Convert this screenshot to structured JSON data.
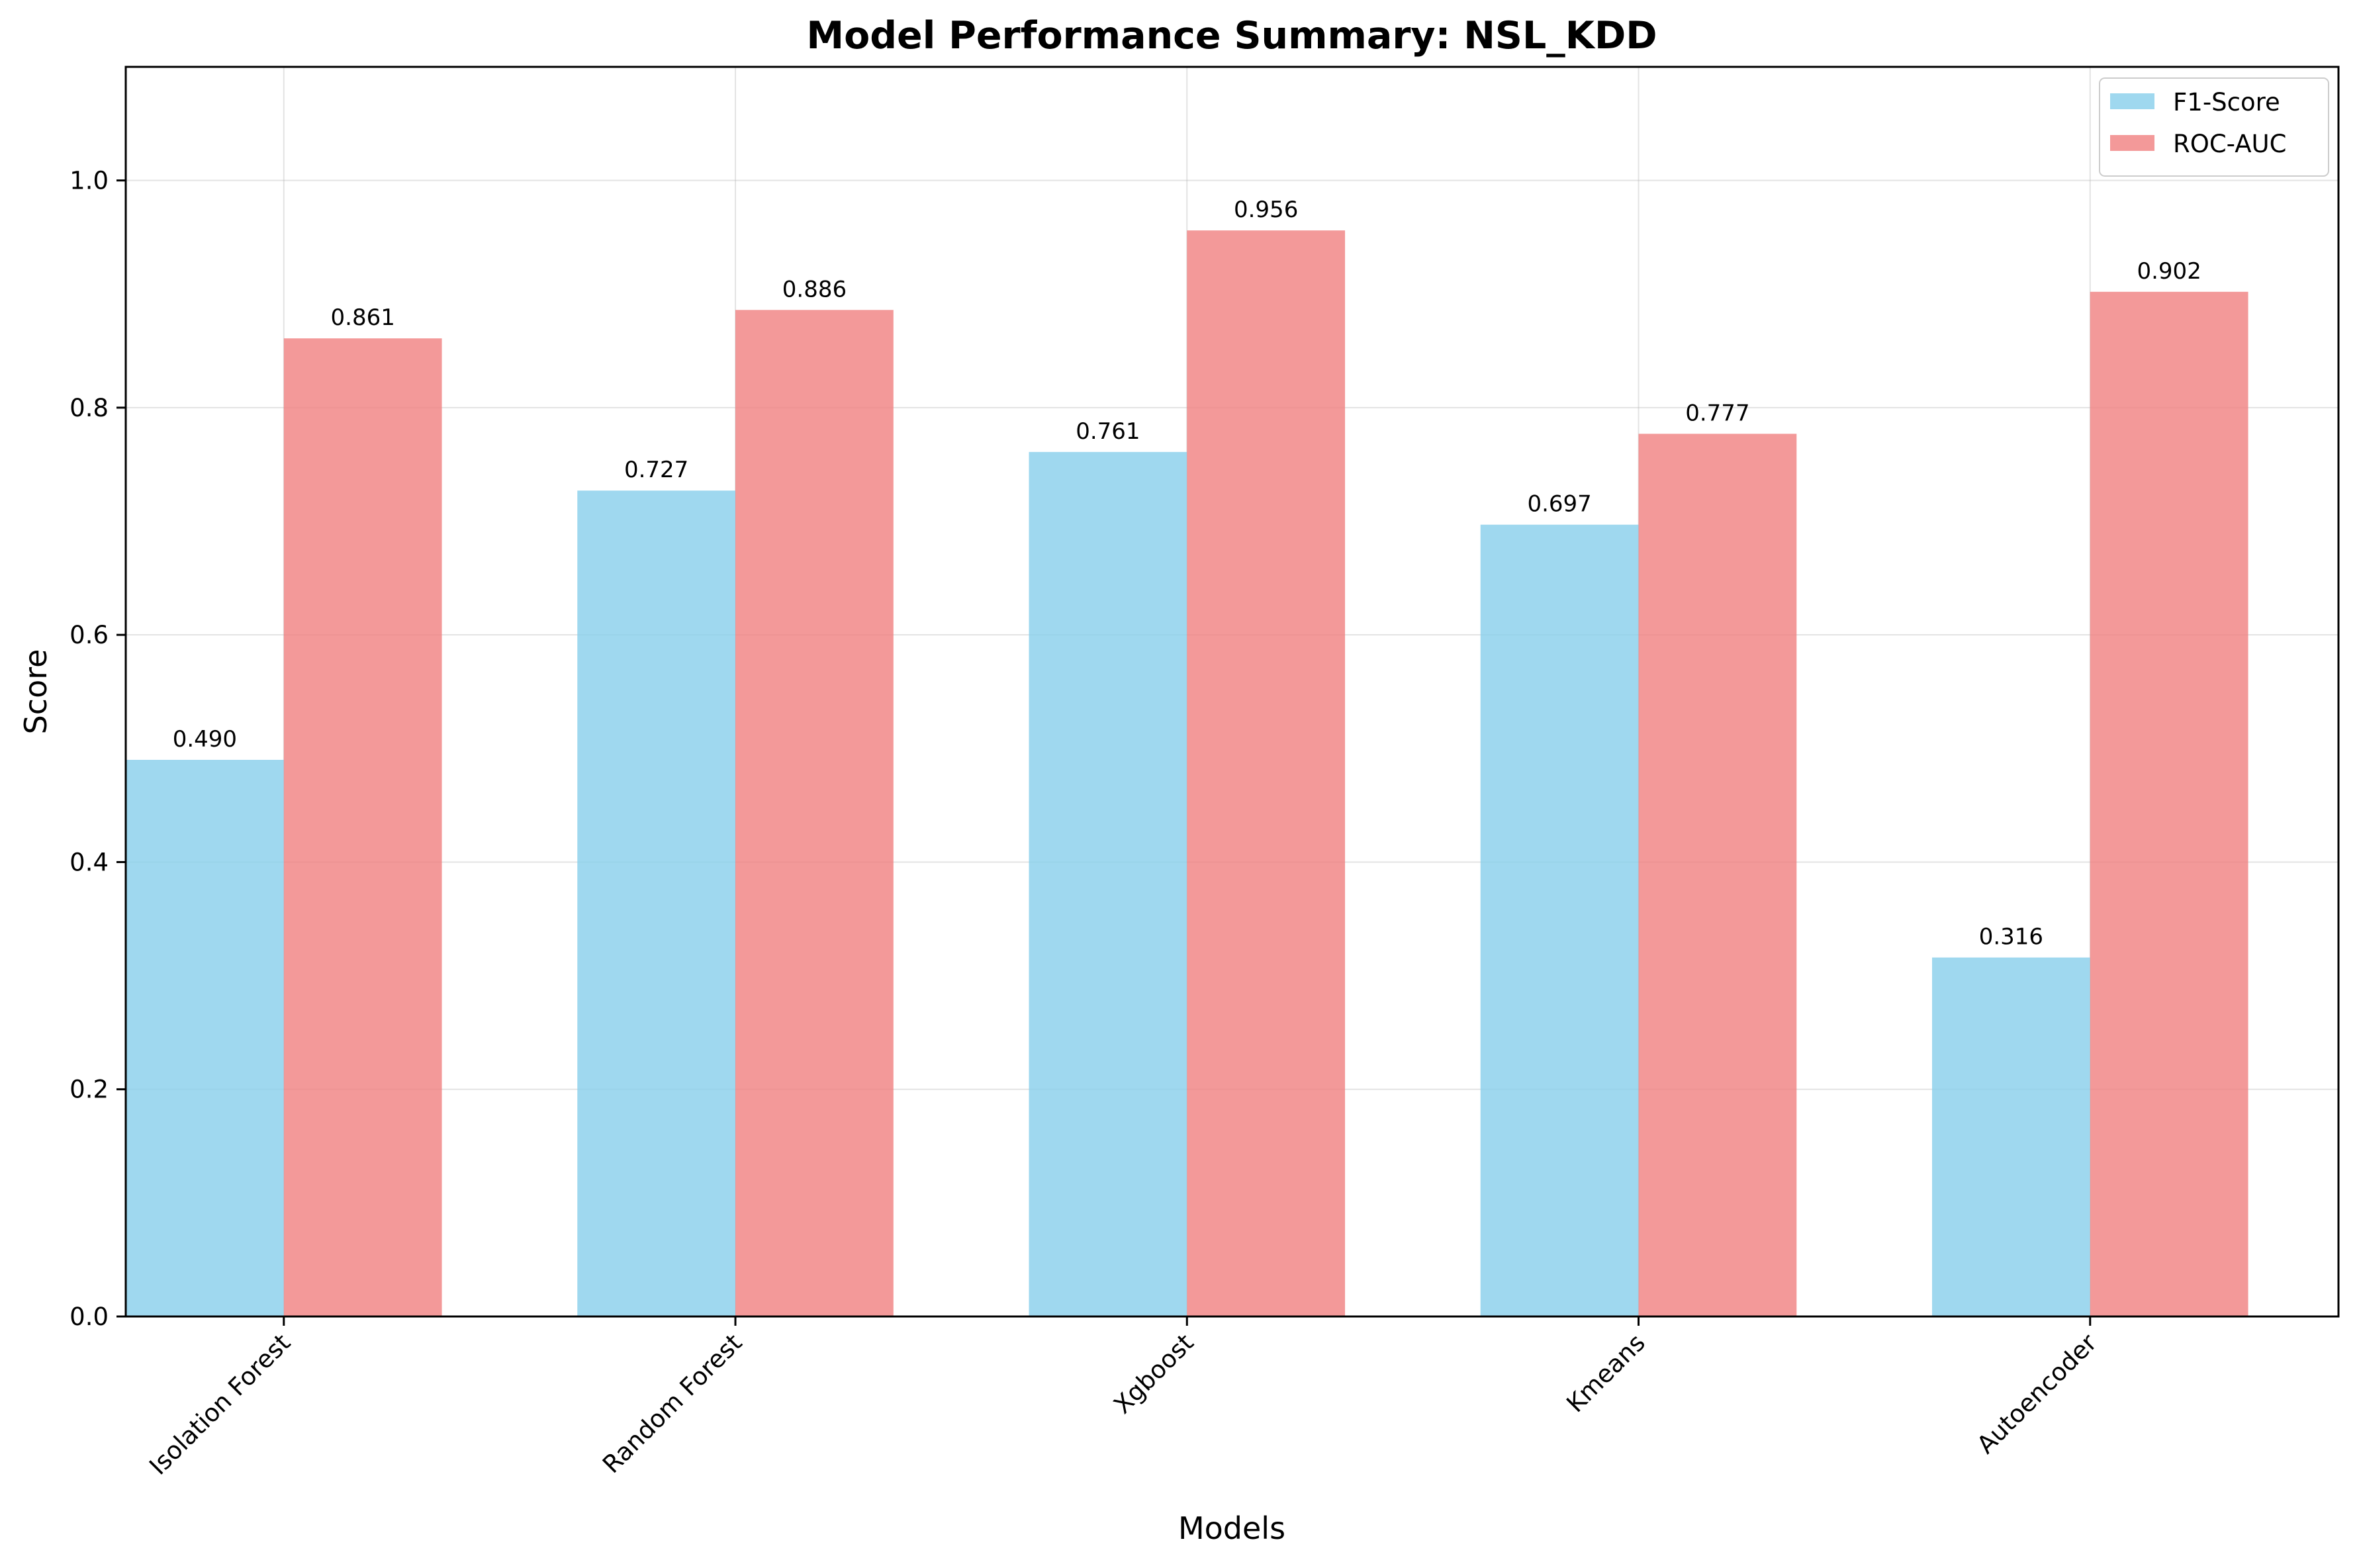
{
  "chart_data": {
    "type": "bar",
    "title": "Model Performance Summary: NSL_KDD",
    "xlabel": "Models",
    "ylabel": "Score",
    "ylim": [
      0,
      1.1
    ],
    "yticks": [
      "0.0",
      "0.2",
      "0.4",
      "0.6",
      "0.8",
      "1.0"
    ],
    "categories": [
      "Isolation Forest",
      "Random Forest",
      "Xgboost",
      "Kmeans",
      "Autoencoder"
    ],
    "series": [
      {
        "name": "F1-Score",
        "values": [
          0.49,
          0.727,
          0.761,
          0.697,
          0.316
        ],
        "labels": [
          "0.490",
          "0.727",
          "0.761",
          "0.697",
          "0.316"
        ],
        "color": "#87CEEB"
      },
      {
        "name": "ROC-AUC",
        "values": [
          0.861,
          0.886,
          0.956,
          0.777,
          0.902
        ],
        "labels": [
          "0.861",
          "0.886",
          "0.956",
          "0.777",
          "0.902"
        ],
        "color": "#F08080"
      }
    ],
    "grid": true,
    "legend_position": "top-right"
  }
}
